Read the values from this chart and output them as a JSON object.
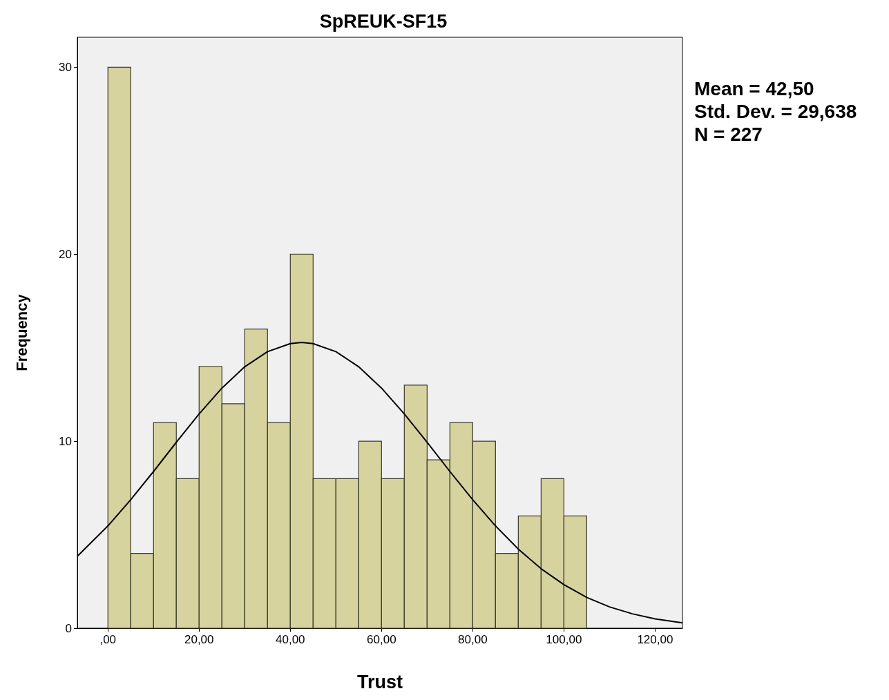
{
  "chart_data": {
    "type": "histogram",
    "title": "SpREUK-SF15",
    "xlabel": "Trust",
    "ylabel": "Frequency",
    "bins": [
      0,
      5,
      10,
      15,
      20,
      25,
      30,
      35,
      40,
      45,
      50,
      55,
      60,
      65,
      70,
      75,
      80,
      85,
      90,
      95,
      100,
      105
    ],
    "values": [
      30,
      4,
      11,
      8,
      14,
      12,
      16,
      11,
      20,
      8,
      8,
      10,
      8,
      13,
      9,
      11,
      10,
      4,
      6,
      8,
      6
    ],
    "color": "#d6d39f",
    "series": [
      {
        "type": "line",
        "color": "#000000",
        "x": [
          -6.7,
          0,
          5,
          10,
          15,
          20,
          25,
          30,
          35,
          40,
          42.5,
          45,
          50,
          55,
          60,
          65,
          70,
          75,
          80,
          85,
          90,
          95,
          100,
          105,
          110,
          115,
          120,
          126
        ],
        "values": [
          3.85,
          5.47,
          6.87,
          8.38,
          9.94,
          11.46,
          12.84,
          13.98,
          14.79,
          15.22,
          15.28,
          15.22,
          14.79,
          13.98,
          12.84,
          11.46,
          9.94,
          8.38,
          6.87,
          5.47,
          4.23,
          3.18,
          2.33,
          1.65,
          1.14,
          0.77,
          0.5,
          0.29
        ]
      }
    ],
    "xlim": [
      -6.7,
      126
    ],
    "ylim": [
      0,
      31.6
    ],
    "xticks": [
      {
        "value": 0,
        "label": ",00"
      },
      {
        "value": 20,
        "label": "20,00"
      },
      {
        "value": 40,
        "label": "40,00"
      },
      {
        "value": 60,
        "label": "60,00"
      },
      {
        "value": 80,
        "label": "80,00"
      },
      {
        "value": 100,
        "label": "100,00"
      },
      {
        "value": 120,
        "label": "120,00"
      }
    ],
    "yticks": [
      0,
      10,
      20,
      30
    ],
    "grid": false,
    "marker": "none",
    "line_style": "solid",
    "annotations": [
      "Mean = 42,50",
      "Std. Dev. = 29,638",
      "N = 227"
    ]
  }
}
